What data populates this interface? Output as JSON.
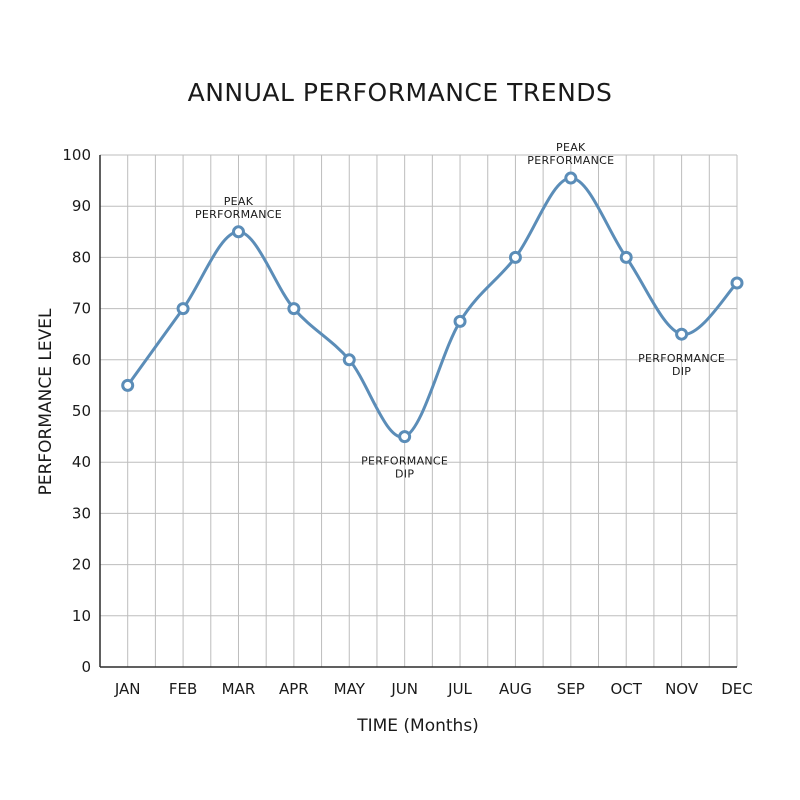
{
  "chart_data": {
    "type": "line",
    "title": "ANNUAL PERFORMANCE TRENDS",
    "xlabel": "TIME (Months)",
    "ylabel": "PERFORMANCE LEVEL",
    "categories": [
      "JAN",
      "FEB",
      "MAR",
      "APR",
      "MAY",
      "JUN",
      "JUL",
      "AUG",
      "SEP",
      "OCT",
      "NOV",
      "DEC"
    ],
    "series": [
      {
        "values": [
          55,
          70,
          85,
          70,
          60,
          45,
          67.5,
          80,
          95.5,
          80,
          65,
          75
        ]
      }
    ],
    "ylim": [
      0,
      100
    ],
    "yticks": [
      0,
      10,
      20,
      30,
      40,
      50,
      60,
      70,
      80,
      90,
      100
    ],
    "grid": true,
    "smooth": true,
    "annotations": [
      {
        "category": "MAR",
        "lines": [
          "PEAK",
          "PERFORMANCE"
        ],
        "position": "above"
      },
      {
        "category": "JUN",
        "lines": [
          "PERFORMANCE",
          "DIP"
        ],
        "position": "below"
      },
      {
        "category": "SEP",
        "lines": [
          "PEAK",
          "PERFORMANCE"
        ],
        "position": "above"
      },
      {
        "category": "NOV",
        "lines": [
          "PERFORMANCE",
          "DIP"
        ],
        "position": "below"
      }
    ],
    "colors": {
      "line": "#5b8db8",
      "grid": "#bdbdbd",
      "axis": "#2b2b2b"
    }
  }
}
